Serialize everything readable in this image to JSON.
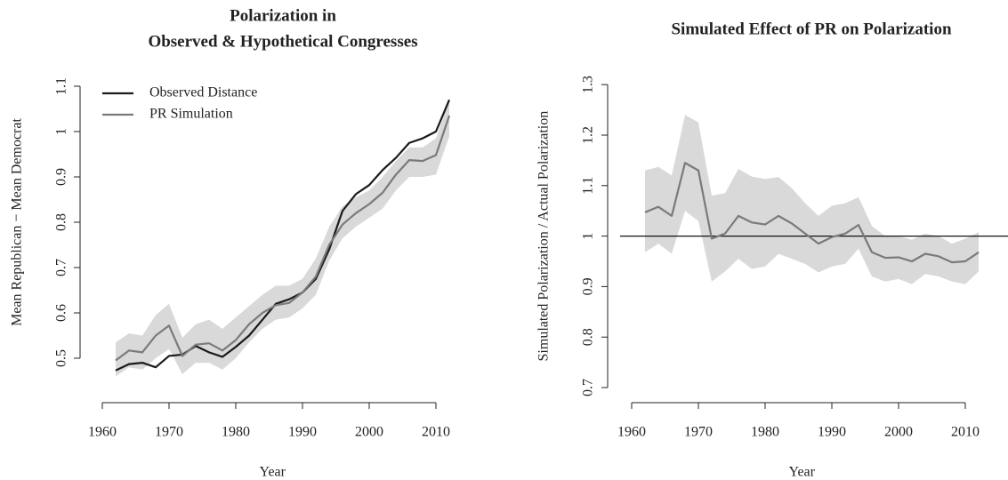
{
  "chart_data": [
    {
      "type": "line",
      "title": [
        "Polarization in",
        "Observed & Hypothetical Congresses"
      ],
      "xlabel": "Year",
      "ylabel": "Mean Republican − Mean Democrat",
      "x": [
        1962,
        1964,
        1966,
        1968,
        1970,
        1972,
        1974,
        1976,
        1978,
        1980,
        1982,
        1984,
        1986,
        1988,
        1990,
        1992,
        1994,
        1996,
        1998,
        2000,
        2002,
        2004,
        2006,
        2008,
        2010,
        2012
      ],
      "series": [
        {
          "name": "Observed Distance",
          "color": "#1a1a1a",
          "values": [
            0.473,
            0.487,
            0.49,
            0.48,
            0.505,
            0.508,
            0.527,
            0.513,
            0.503,
            0.525,
            0.55,
            0.585,
            0.62,
            0.63,
            0.645,
            0.675,
            0.74,
            0.825,
            0.862,
            0.882,
            0.915,
            0.942,
            0.975,
            0.985,
            1.0,
            1.07
          ]
        },
        {
          "name": "PR Simulation",
          "color": "#7a7a7a",
          "values": [
            0.495,
            0.517,
            0.513,
            0.55,
            0.572,
            0.505,
            0.53,
            0.533,
            0.517,
            0.54,
            0.575,
            0.6,
            0.617,
            0.622,
            0.645,
            0.68,
            0.75,
            0.795,
            0.82,
            0.84,
            0.865,
            0.905,
            0.937,
            0.935,
            0.948,
            1.035
          ]
        }
      ],
      "band": {
        "color": "#d9d9d9",
        "lower": [
          0.46,
          0.48,
          0.475,
          0.5,
          0.52,
          0.465,
          0.49,
          0.49,
          0.475,
          0.5,
          0.535,
          0.565,
          0.585,
          0.59,
          0.61,
          0.64,
          0.715,
          0.765,
          0.79,
          0.81,
          0.83,
          0.87,
          0.9,
          0.9,
          0.905,
          0.99
        ],
        "upper": [
          0.535,
          0.555,
          0.55,
          0.595,
          0.62,
          0.545,
          0.575,
          0.585,
          0.565,
          0.59,
          0.615,
          0.64,
          0.66,
          0.66,
          0.675,
          0.72,
          0.79,
          0.835,
          0.855,
          0.87,
          0.9,
          0.935,
          0.965,
          0.965,
          0.985,
          1.07
        ]
      },
      "xlim": [
        1958,
        2013
      ],
      "ylim": [
        0.45,
        1.12
      ],
      "xticks": [
        1960,
        1970,
        1980,
        1990,
        2000,
        2010
      ],
      "yticks": [
        0.5,
        0.6,
        0.7,
        0.8,
        0.9,
        1.0,
        1.1
      ],
      "legend": "top-left",
      "grid": false
    },
    {
      "type": "line",
      "title": [
        "Simulated Effect of PR on Polarization"
      ],
      "xlabel": "Year",
      "ylabel": "Simulated Polarization / Actual Polarization",
      "x": [
        1962,
        1964,
        1966,
        1968,
        1970,
        1972,
        1974,
        1976,
        1978,
        1980,
        1982,
        1984,
        1986,
        1988,
        1990,
        1992,
        1994,
        1996,
        1998,
        2000,
        2002,
        2004,
        2006,
        2008,
        2010,
        2012
      ],
      "series": [
        {
          "color": "#7a7a7a",
          "values": [
            1.047,
            1.058,
            1.04,
            1.145,
            1.13,
            0.995,
            1.005,
            1.04,
            1.027,
            1.023,
            1.04,
            1.025,
            1.005,
            0.985,
            0.998,
            1.005,
            1.022,
            0.968,
            0.957,
            0.958,
            0.95,
            0.965,
            0.96,
            0.948,
            0.95,
            0.968
          ]
        }
      ],
      "band": {
        "color": "#d9d9d9",
        "lower": [
          0.968,
          0.985,
          0.965,
          1.05,
          1.03,
          0.91,
          0.93,
          0.955,
          0.935,
          0.94,
          0.965,
          0.955,
          0.945,
          0.928,
          0.94,
          0.945,
          0.975,
          0.92,
          0.91,
          0.915,
          0.905,
          0.925,
          0.92,
          0.91,
          0.905,
          0.93
        ],
        "upper": [
          1.13,
          1.137,
          1.12,
          1.24,
          1.225,
          1.08,
          1.085,
          1.133,
          1.118,
          1.113,
          1.117,
          1.095,
          1.065,
          1.04,
          1.06,
          1.065,
          1.077,
          1.02,
          1.0,
          1.0,
          0.993,
          1.005,
          1.0,
          0.985,
          0.995,
          1.008
        ]
      },
      "hline": 1.0,
      "xlim": [
        1958,
        2013
      ],
      "ylim": [
        0.68,
        1.31
      ],
      "xticks": [
        1960,
        1970,
        1980,
        1990,
        2000,
        2010
      ],
      "yticks": [
        0.7,
        0.8,
        0.9,
        1.0,
        1.1,
        1.2,
        1.3
      ],
      "grid": false
    }
  ]
}
